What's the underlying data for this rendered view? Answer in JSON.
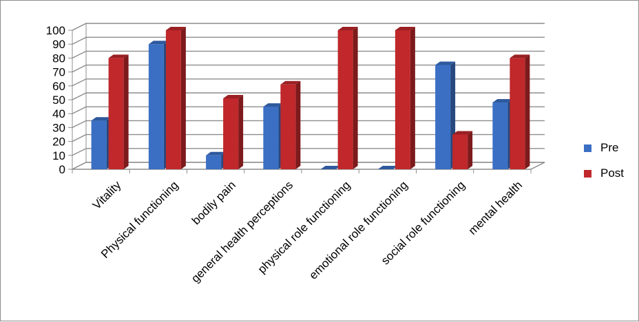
{
  "chart_data": {
    "type": "bar",
    "style": "3d-clustered-column",
    "categories": [
      "Vitality",
      "Physical functioning",
      "bodily pain",
      "general health perceptions",
      "physical role functioning",
      "emotional role functioning",
      "social role functioning",
      "mental health"
    ],
    "series": [
      {
        "name": "Pre",
        "values": [
          35,
          90,
          10,
          45,
          0,
          0,
          75,
          48
        ],
        "color": "#3a6fc4"
      },
      {
        "name": "Post",
        "values": [
          80,
          100,
          51,
          61,
          100,
          100,
          25,
          80
        ],
        "color": "#c0282b"
      }
    ],
    "y_ticks": [
      "0",
      "10",
      "20",
      "30",
      "40",
      "50",
      "60",
      "70",
      "80",
      "90",
      "100"
    ],
    "ylim": [
      0,
      100
    ],
    "grid": true,
    "legend_position": "right",
    "title": "",
    "xlabel": "",
    "ylabel": ""
  }
}
